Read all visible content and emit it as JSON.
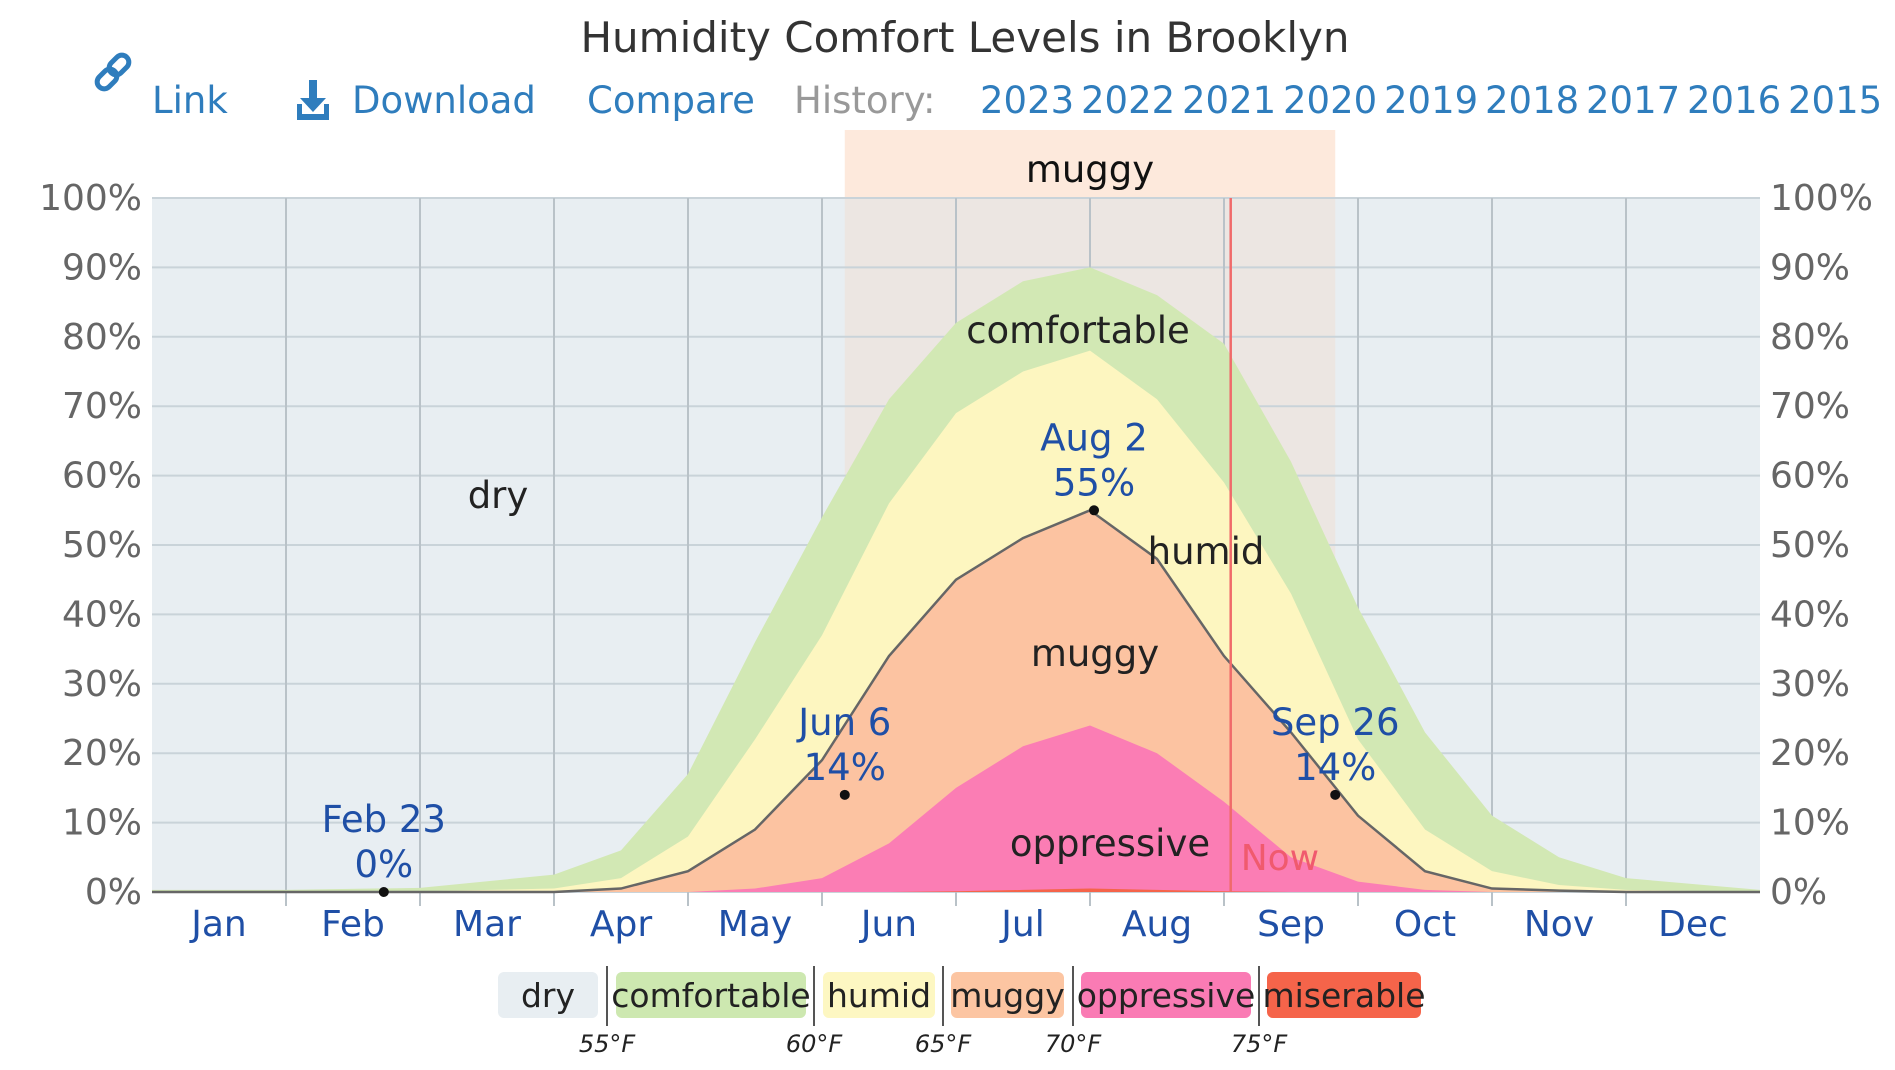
{
  "title": "Humidity Comfort Levels in Brooklyn",
  "nav": {
    "link_label": "Link",
    "download_label": "Download",
    "compare_label": "Compare",
    "history_label": "History:",
    "years": [
      "2023",
      "2022",
      "2021",
      "2020",
      "2019",
      "2018",
      "2017",
      "2016",
      "2015"
    ]
  },
  "highlight_label": "muggy",
  "band_labels": {
    "dry": "dry",
    "comfortable": "comfortable",
    "humid": "humid",
    "muggy": "muggy",
    "oppressive": "oppressive"
  },
  "now_label": "Now",
  "annotations": [
    {
      "date": "Feb 23",
      "value": "0%",
      "month": 1.73,
      "pct": 0
    },
    {
      "date": "Jun 6",
      "value": "14%",
      "month": 5.17,
      "pct": 14
    },
    {
      "date": "Aug 2",
      "value": "55%",
      "month": 7.03,
      "pct": 55
    },
    {
      "date": "Sep 26",
      "value": "14%",
      "month": 8.83,
      "pct": 14
    }
  ],
  "legend": {
    "items": [
      {
        "label": "dry",
        "color": "#e8eef2"
      },
      {
        "label": "comfortable",
        "color": "#cde8b0"
      },
      {
        "label": "humid",
        "color": "#fdf7c2"
      },
      {
        "label": "muggy",
        "color": "#fcc5a2"
      },
      {
        "label": "oppressive",
        "color": "#fa7bb4"
      },
      {
        "label": "miserable",
        "color": "#f5644a"
      }
    ],
    "temps": [
      "55°F",
      "60°F",
      "65°F",
      "70°F",
      "75°F"
    ]
  },
  "chart_data": {
    "type": "area",
    "title": "Humidity Comfort Levels in Brooklyn",
    "x_unit": "month",
    "categories": [
      "Jan",
      "Feb",
      "Mar",
      "Apr",
      "May",
      "Jun",
      "Jul",
      "Aug",
      "Sep",
      "Oct",
      "Nov",
      "Dec"
    ],
    "ylim": [
      0,
      100
    ],
    "y_ticks": [
      "0%",
      "10%",
      "20%",
      "30%",
      "40%",
      "50%",
      "60%",
      "70%",
      "80%",
      "90%",
      "100%"
    ],
    "grid": true,
    "highlight_range": [
      5.17,
      8.83
    ],
    "now": 8.05,
    "x": [
      0,
      1,
      2,
      3,
      3.5,
      4,
      4.5,
      5,
      5.5,
      6,
      6.5,
      7,
      7.5,
      8,
      8.5,
      9,
      9.5,
      10,
      10.5,
      11,
      12
    ],
    "series": [
      {
        "name": "comfortable",
        "color": "#d2e8b4",
        "values": [
          0.3,
          0.3,
          0.6,
          2.5,
          6,
          17,
          36,
          54,
          71,
          82,
          88,
          90,
          86,
          79,
          62,
          41,
          23,
          11,
          5,
          2,
          0.3
        ]
      },
      {
        "name": "humid",
        "color": "#fdf6c0",
        "values": [
          0,
          0,
          0.1,
          0.5,
          2,
          8,
          22,
          37,
          56,
          69,
          75,
          78,
          71,
          59,
          43,
          22,
          9,
          3,
          1,
          0.3,
          0
        ]
      },
      {
        "name": "muggy",
        "color": "#fcc3a1",
        "values": [
          0,
          0,
          0,
          0,
          0.5,
          3,
          9,
          19,
          34,
          45,
          51,
          55,
          48,
          34,
          23,
          11,
          3,
          0.5,
          0.2,
          0,
          0
        ]
      },
      {
        "name": "oppressive",
        "color": "#fb7db4",
        "values": [
          0,
          0,
          0,
          0,
          0,
          0,
          0.5,
          2,
          7,
          15,
          21,
          24,
          20,
          13,
          5,
          1.5,
          0.3,
          0,
          0,
          0,
          0
        ]
      },
      {
        "name": "miserable",
        "color": "#f5644a",
        "values": [
          0,
          0,
          0,
          0,
          0,
          0,
          0,
          0,
          0,
          0.1,
          0.3,
          0.5,
          0.3,
          0.1,
          0,
          0,
          0,
          0,
          0,
          0,
          0
        ]
      }
    ]
  }
}
